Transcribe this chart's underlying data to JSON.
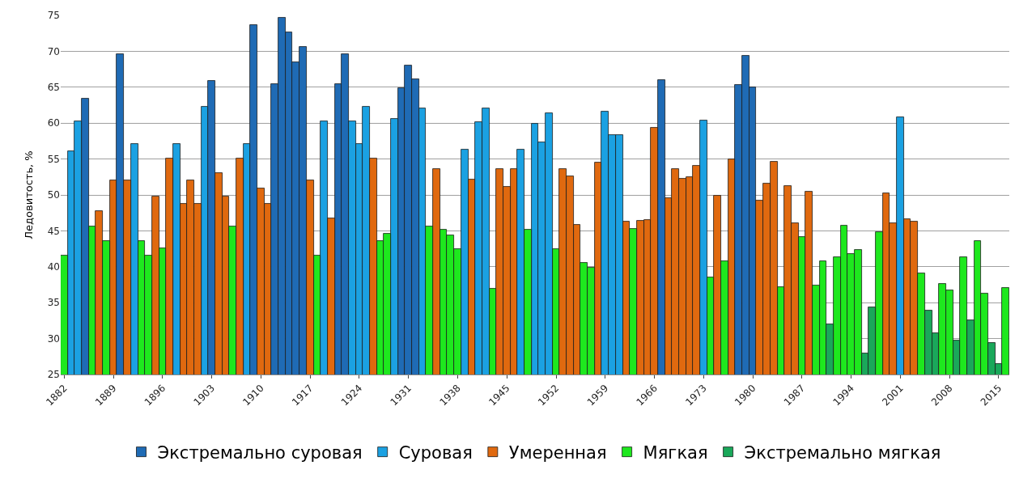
{
  "chart_data": {
    "type": "bar",
    "ylabel": "Ледовитость, %",
    "xlim": [
      1881.5,
      2016.5
    ],
    "xticks": [
      1882,
      1889,
      1896,
      1903,
      1910,
      1917,
      1924,
      1931,
      1938,
      1945,
      1952,
      1959,
      1966,
      1973,
      1980,
      1987,
      1994,
      2001,
      2008,
      2015
    ],
    "ylim": [
      25,
      75
    ],
    "yticks": [
      25,
      30,
      35,
      40,
      45,
      50,
      55,
      60,
      65,
      70,
      75
    ],
    "grid": "y",
    "legend": "bottom",
    "series": [
      {
        "name": "Экстремально суровая",
        "color": "#1f6bb5",
        "x": [
          1885,
          1890,
          1903,
          1909,
          1912,
          1913,
          1914,
          1915,
          1916,
          1921,
          1922,
          1930,
          1931,
          1932,
          1967,
          1978,
          1979,
          1980
        ],
        "values": [
          63.4,
          69.6,
          65.9,
          73.7,
          65.4,
          74.7,
          72.6,
          68.5,
          70.6,
          65.4,
          69.6,
          64.9,
          68.0,
          66.1,
          66.0,
          65.3,
          69.4,
          65.0
        ]
      },
      {
        "name": "Суровая",
        "color": "#1ba1e2",
        "x": [
          1883,
          1884,
          1892,
          1898,
          1902,
          1908,
          1919,
          1923,
          1924,
          1925,
          1929,
          1933,
          1939,
          1941,
          1942,
          1947,
          1949,
          1950,
          1951,
          1959,
          1960,
          1961,
          1973,
          2001
        ],
        "values": [
          56.1,
          60.3,
          57.1,
          57.1,
          62.3,
          57.1,
          60.3,
          60.3,
          57.1,
          62.3,
          60.6,
          62.1,
          56.3,
          60.1,
          62.1,
          56.3,
          59.9,
          57.3,
          61.4,
          61.6,
          58.3,
          58.3,
          60.4,
          60.8
        ]
      },
      {
        "name": "Умеренная",
        "color": "#e0690f",
        "x": [
          1887,
          1889,
          1891,
          1895,
          1897,
          1899,
          1900,
          1901,
          1904,
          1905,
          1907,
          1910,
          1911,
          1917,
          1920,
          1926,
          1935,
          1940,
          1944,
          1945,
          1946,
          1953,
          1954,
          1955,
          1958,
          1962,
          1964,
          1965,
          1966,
          1968,
          1969,
          1970,
          1971,
          1972,
          1975,
          1977,
          1981,
          1982,
          1983,
          1985,
          1986,
          1988,
          1999,
          2000,
          2002,
          2003
        ],
        "values": [
          47.8,
          52.0,
          52.0,
          49.8,
          55.1,
          48.8,
          52.0,
          48.8,
          53.0,
          49.8,
          55.1,
          50.9,
          48.8,
          52.0,
          46.7,
          55.1,
          53.6,
          52.1,
          53.6,
          51.1,
          53.6,
          53.6,
          52.6,
          45.8,
          54.5,
          46.3,
          46.4,
          46.5,
          59.4,
          49.5,
          53.6,
          52.3,
          52.5,
          54.0,
          49.9,
          55.0,
          49.2,
          51.6,
          54.6,
          51.2,
          46.1,
          50.5,
          50.2,
          46.1,
          46.6,
          46.3
        ]
      },
      {
        "name": "Мягкая",
        "color": "#1ee81e",
        "x": [
          1882,
          1886,
          1888,
          1893,
          1894,
          1896,
          1906,
          1918,
          1927,
          1928,
          1934,
          1936,
          1937,
          1938,
          1943,
          1948,
          1952,
          1956,
          1957,
          1963,
          1974,
          1976,
          1984,
          1987,
          1989,
          1990,
          1992,
          1993,
          1994,
          1995,
          1998,
          2004,
          2007,
          2008,
          2010,
          2012,
          2013,
          2016
        ],
        "values": [
          41.6,
          45.6,
          43.6,
          43.6,
          41.5,
          42.6,
          45.6,
          41.5,
          43.6,
          44.6,
          45.6,
          45.2,
          44.4,
          42.5,
          36.9,
          45.2,
          42.4,
          40.5,
          39.9,
          45.3,
          38.5,
          40.8,
          37.2,
          44.2,
          37.4,
          40.8,
          41.3,
          45.7,
          41.8,
          42.3,
          44.8,
          39.1,
          37.6,
          36.7,
          41.3,
          43.6,
          36.3,
          37.1
        ]
      },
      {
        "name": "Экстремально мягкая",
        "color": "#1aa85a",
        "x": [
          1991,
          1996,
          1997,
          2005,
          2006,
          2009,
          2011,
          2014,
          2015
        ],
        "values": [
          32.0,
          27.9,
          34.3,
          33.9,
          30.7,
          29.7,
          32.5,
          29.4,
          26.5
        ]
      }
    ]
  }
}
